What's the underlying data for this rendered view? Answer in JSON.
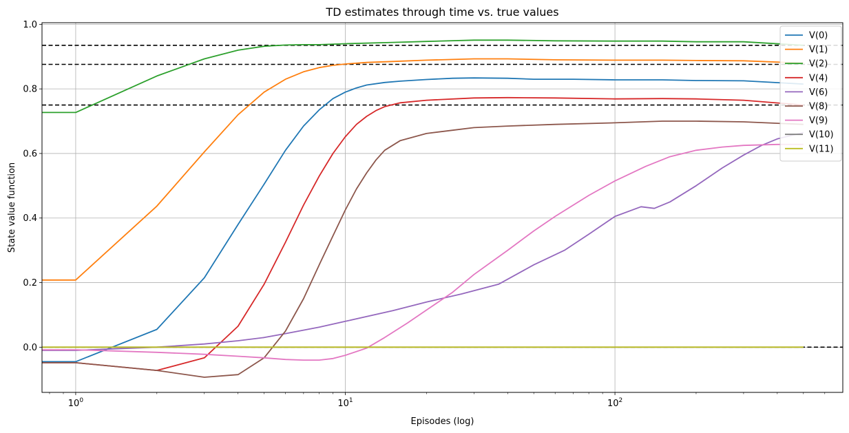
{
  "chart_data": {
    "type": "line",
    "title": "TD estimates through time vs. true values",
    "xlabel": "Episodes (log)",
    "ylabel": "State value function",
    "xscale": "log",
    "xlim": [
      0.75,
      700
    ],
    "ylim": [
      -0.14,
      1.005
    ],
    "xticks": [
      {
        "value": 1,
        "base": "10",
        "exp": "0"
      },
      {
        "value": 10,
        "base": "10",
        "exp": "1"
      },
      {
        "value": 100,
        "base": "10",
        "exp": "2"
      }
    ],
    "yticks": [
      0.0,
      0.2,
      0.4,
      0.6,
      0.8,
      1.0
    ],
    "ytick_labels": [
      "0.0",
      "0.2",
      "0.4",
      "0.6",
      "0.8",
      "1.0"
    ],
    "grid": true,
    "legend_position": "top-right",
    "reference_lines": [
      0.935,
      0.876,
      0.75,
      0.0
    ],
    "reference_line_color": "#000000",
    "series": [
      {
        "name": "V(0)",
        "color": "#1f77b4",
        "x": [
          0.75,
          1,
          2,
          3,
          4,
          5,
          6,
          7,
          8,
          9,
          10,
          11,
          12,
          14,
          16,
          20,
          25,
          30,
          40,
          50,
          70,
          100,
          150,
          200,
          300,
          500
        ],
        "y": [
          -0.045,
          -0.045,
          0.055,
          0.215,
          0.38,
          0.505,
          0.61,
          0.685,
          0.735,
          0.77,
          0.79,
          0.803,
          0.812,
          0.82,
          0.824,
          0.829,
          0.833,
          0.834,
          0.833,
          0.83,
          0.83,
          0.828,
          0.828,
          0.826,
          0.825,
          0.815
        ]
      },
      {
        "name": "V(1)",
        "color": "#ff7f0e",
        "x": [
          0.75,
          1,
          2,
          3,
          4,
          5,
          6,
          7,
          8,
          9,
          10,
          12,
          15,
          20,
          30,
          40,
          60,
          100,
          150,
          200,
          300,
          500
        ],
        "y": [
          0.208,
          0.208,
          0.437,
          0.605,
          0.72,
          0.79,
          0.83,
          0.853,
          0.866,
          0.873,
          0.877,
          0.882,
          0.885,
          0.889,
          0.893,
          0.893,
          0.89,
          0.889,
          0.889,
          0.888,
          0.887,
          0.88
        ]
      },
      {
        "name": "V(2)",
        "color": "#2ca02c",
        "x": [
          0.75,
          1,
          2,
          3,
          4,
          5,
          6,
          7,
          8,
          10,
          15,
          20,
          30,
          40,
          60,
          100,
          150,
          200,
          300,
          500
        ],
        "y": [
          0.727,
          0.727,
          0.84,
          0.893,
          0.92,
          0.932,
          0.936,
          0.937,
          0.937,
          0.94,
          0.944,
          0.947,
          0.951,
          0.951,
          0.949,
          0.948,
          0.948,
          0.946,
          0.946,
          0.935
        ]
      },
      {
        "name": "V(4)",
        "color": "#d62728",
        "x": [
          0.75,
          1,
          2,
          3,
          4,
          5,
          6,
          7,
          8,
          9,
          10,
          11,
          12,
          13,
          14,
          16,
          20,
          30,
          40,
          60,
          100,
          150,
          200,
          300,
          500
        ],
        "y": [
          -0.048,
          -0.048,
          -0.072,
          -0.033,
          0.065,
          0.195,
          0.325,
          0.44,
          0.53,
          0.6,
          0.652,
          0.69,
          0.715,
          0.733,
          0.745,
          0.757,
          0.765,
          0.772,
          0.773,
          0.772,
          0.769,
          0.77,
          0.769,
          0.765,
          0.75
        ]
      },
      {
        "name": "V(6)",
        "color": "#9467bd",
        "x": [
          0.75,
          1,
          2,
          3,
          4,
          5,
          6,
          8,
          10,
          15,
          20,
          27,
          37,
          50,
          65,
          80,
          100,
          125,
          140,
          160,
          200,
          250,
          300,
          350,
          400,
          500
        ],
        "y": [
          -0.01,
          -0.01,
          0.0,
          0.01,
          0.02,
          0.03,
          0.042,
          0.062,
          0.08,
          0.113,
          0.14,
          0.165,
          0.195,
          0.255,
          0.3,
          0.35,
          0.405,
          0.435,
          0.43,
          0.45,
          0.5,
          0.555,
          0.595,
          0.625,
          0.645,
          0.665
        ]
      },
      {
        "name": "V(8)",
        "color": "#8c564b",
        "x": [
          0.75,
          1,
          2,
          3,
          4,
          5,
          6,
          7,
          8,
          9,
          10,
          11,
          12,
          13,
          14,
          16,
          20,
          25,
          30,
          40,
          60,
          100,
          150,
          200,
          300,
          500
        ],
        "y": [
          -0.048,
          -0.048,
          -0.072,
          -0.093,
          -0.085,
          -0.033,
          0.05,
          0.15,
          0.255,
          0.345,
          0.425,
          0.49,
          0.54,
          0.58,
          0.61,
          0.64,
          0.662,
          0.672,
          0.68,
          0.685,
          0.69,
          0.695,
          0.7,
          0.7,
          0.698,
          0.69
        ]
      },
      {
        "name": "V(9)",
        "color": "#e377c2",
        "x": [
          0.75,
          1,
          2,
          3,
          4,
          5,
          6,
          7,
          8,
          9,
          10,
          12,
          14,
          17,
          20,
          25,
          30,
          40,
          50,
          60,
          80,
          100,
          130,
          160,
          200,
          250,
          300,
          400,
          500
        ],
        "y": [
          -0.008,
          -0.008,
          -0.016,
          -0.022,
          -0.028,
          -0.033,
          -0.038,
          -0.04,
          -0.04,
          -0.035,
          -0.025,
          -0.003,
          0.03,
          0.075,
          0.115,
          0.17,
          0.225,
          0.3,
          0.36,
          0.405,
          0.47,
          0.515,
          0.56,
          0.59,
          0.61,
          0.62,
          0.625,
          0.628,
          0.628
        ]
      },
      {
        "name": "V(10)",
        "color": "#7f7f7f",
        "x": [
          0.75,
          500
        ],
        "y": [
          0.0,
          0.0
        ]
      },
      {
        "name": "V(11)",
        "color": "#bcbd22",
        "x": [
          0.75,
          500
        ],
        "y": [
          0.0,
          0.0
        ]
      }
    ]
  }
}
